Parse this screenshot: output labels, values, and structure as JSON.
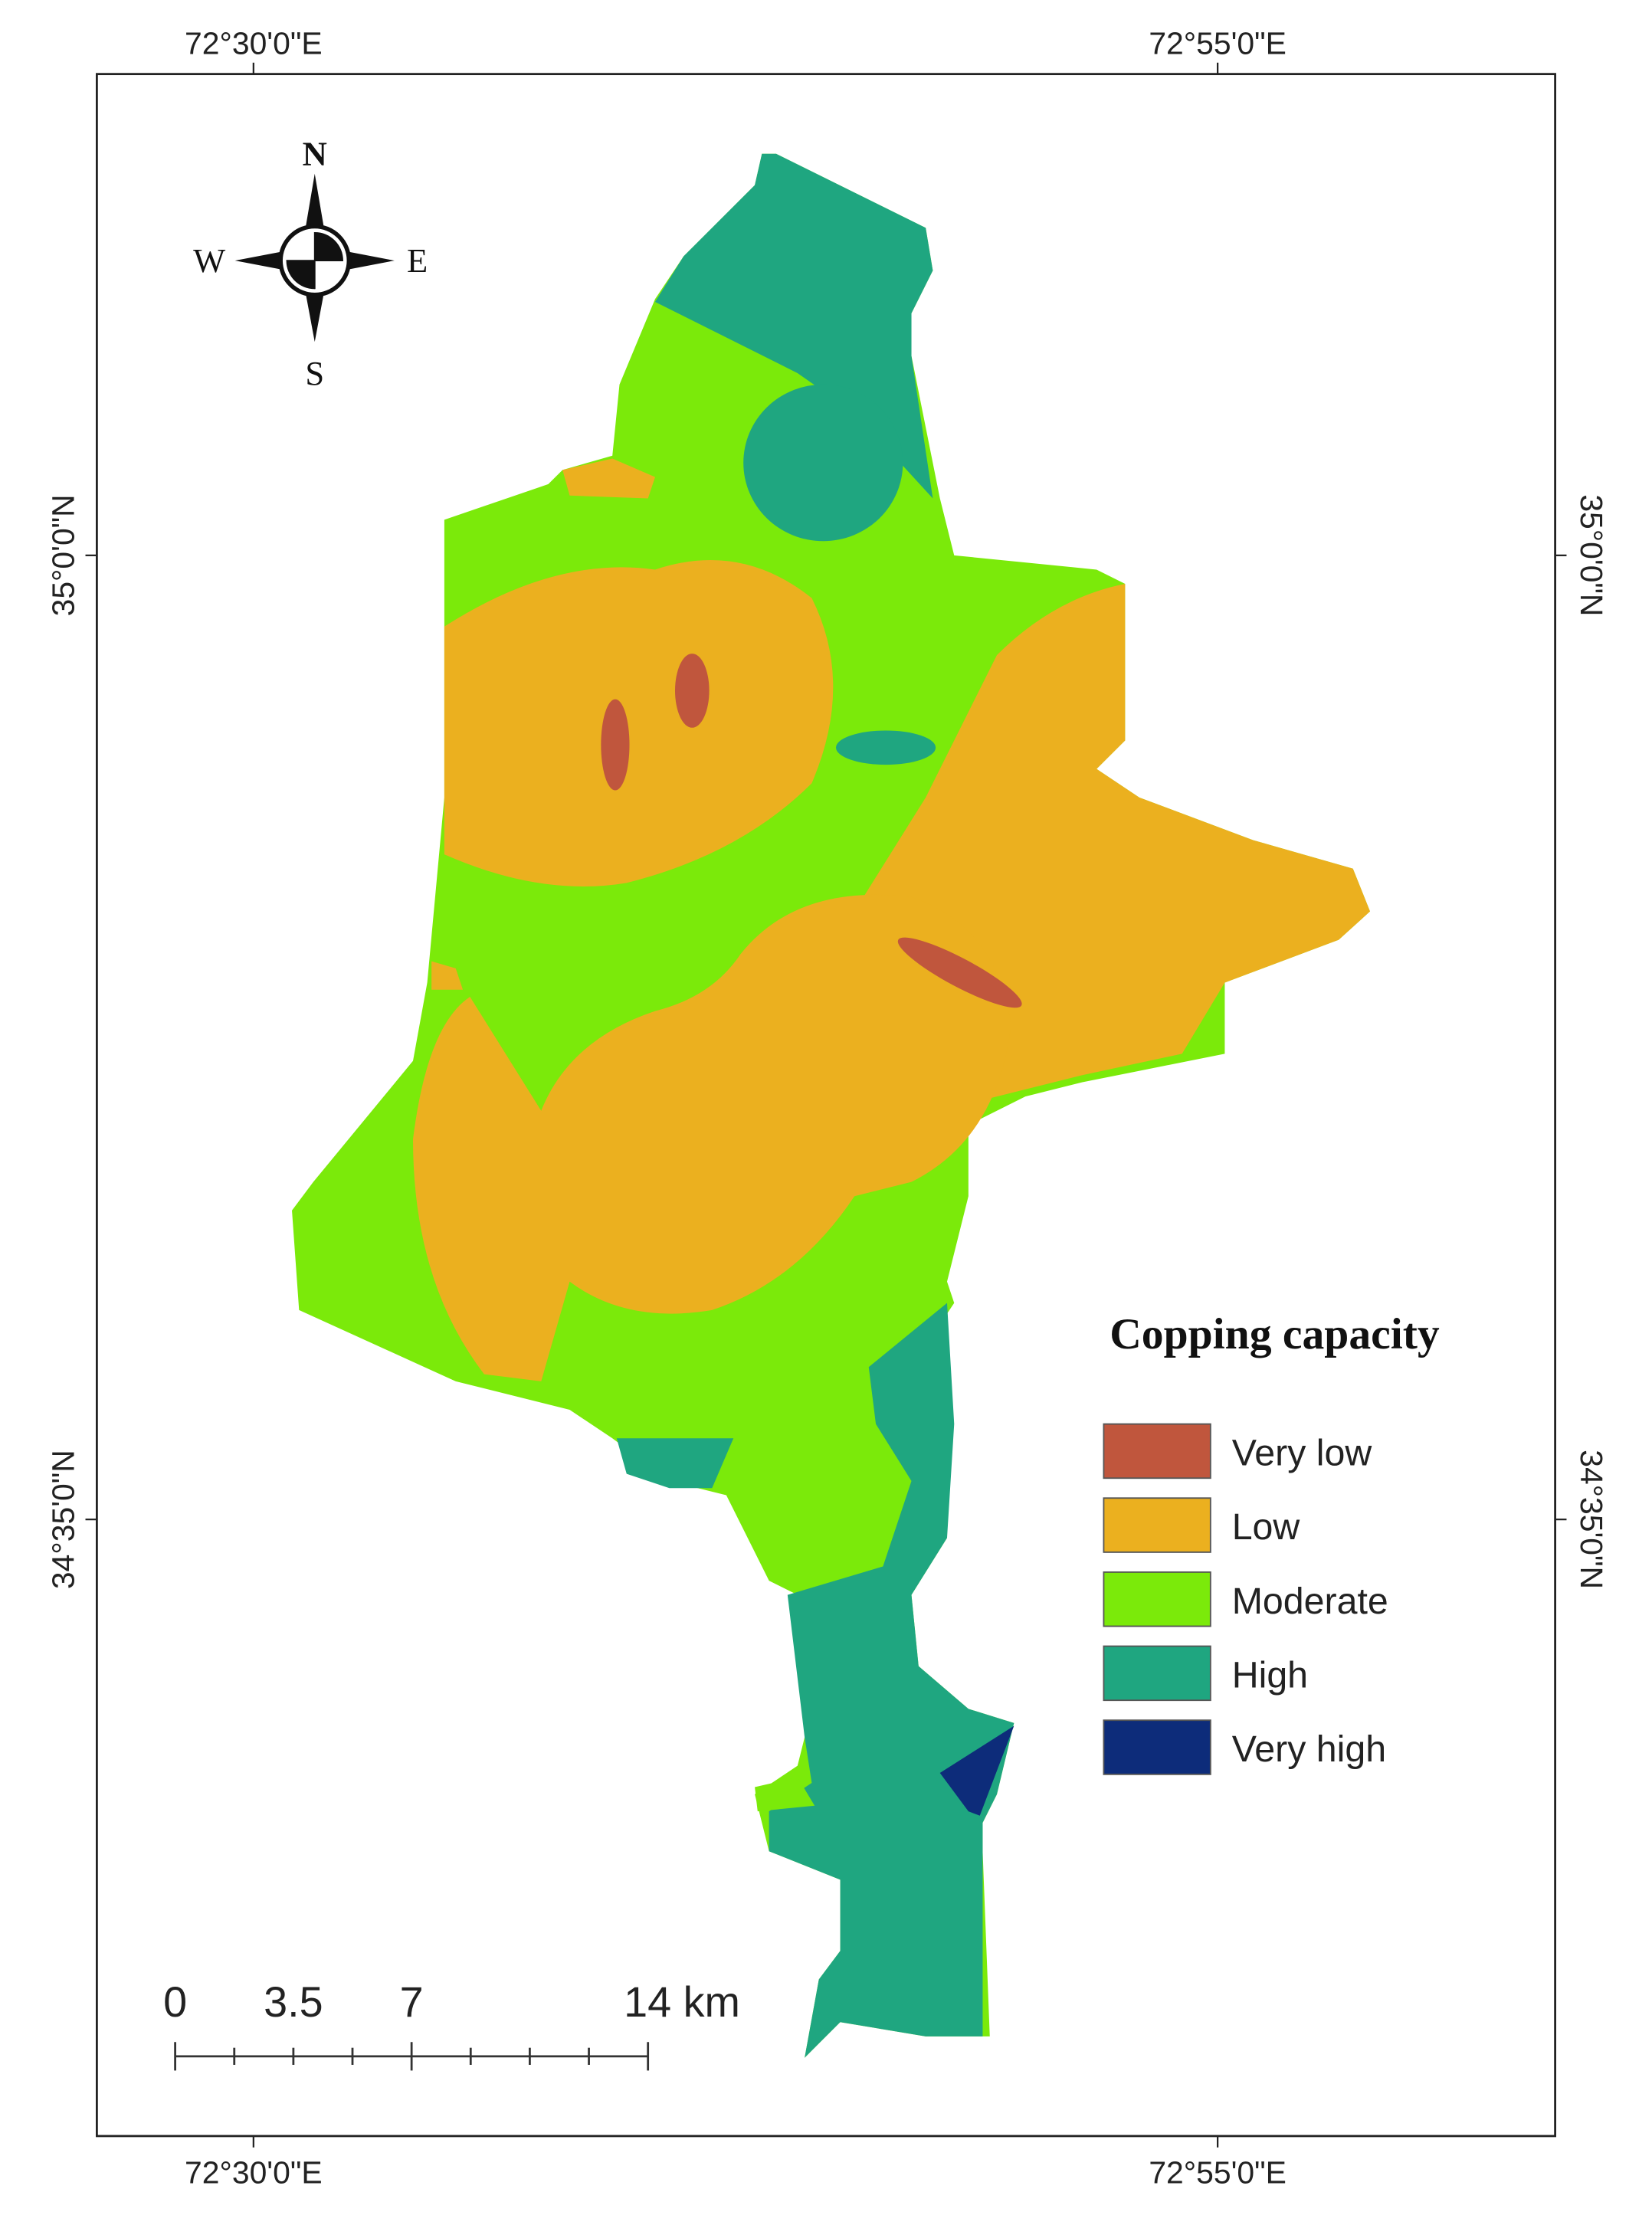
{
  "map": {
    "legend": {
      "title": "Copping capacity",
      "items": [
        {
          "label": "Very low",
          "color": "#c0563d"
        },
        {
          "label": "Low",
          "color": "#ebb01f"
        },
        {
          "label": "Moderate",
          "color": "#7bea0a"
        },
        {
          "label": "High",
          "color": "#1fa680"
        },
        {
          "label": "Very high",
          "color": "#0d2c7a"
        }
      ]
    },
    "graticule": {
      "top": [
        "72°30'0\"E",
        "72°55'0\"E"
      ],
      "bottom": [
        "72°30'0\"E",
        "72°55'0\"E"
      ],
      "left": [
        "35°0'0\"N",
        "34°35'0\"N"
      ],
      "right": [
        "35°0'0\"N",
        "34°35'0\"N"
      ]
    },
    "compass": {
      "north": "N",
      "south": "S",
      "west": "W",
      "east": "E"
    },
    "scale_bar": {
      "labels": [
        "0",
        "3.5",
        "7",
        "14 km"
      ]
    }
  }
}
